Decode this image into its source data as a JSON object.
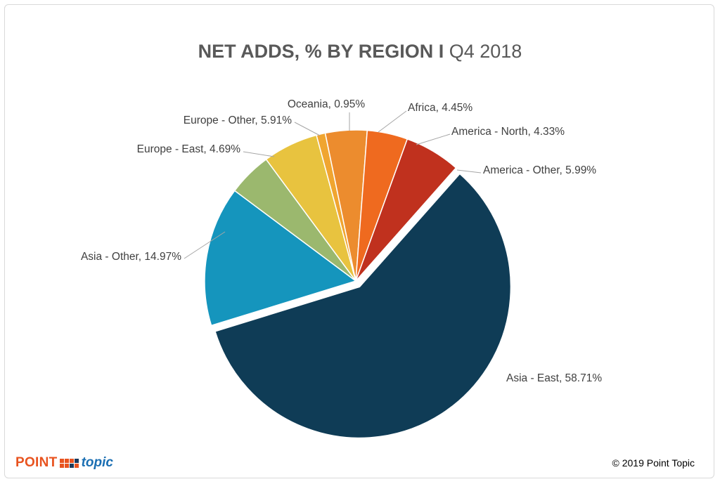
{
  "chart_data": {
    "type": "pie",
    "title_bold": "NET ADDS, % BY REGION",
    "title_sep": " I ",
    "title_light": "Q4 2018",
    "slices": [
      {
        "label": "Asia - East, 58.71%",
        "name": "Asia - East",
        "value": 58.71,
        "color": "#0f3c56",
        "exploded": true
      },
      {
        "label": "Asia - Other, 14.97%",
        "name": "Asia - Other",
        "value": 14.97,
        "color": "#1595bd",
        "exploded": false
      },
      {
        "label": "Europe - East, 4.69%",
        "name": "Europe - East",
        "value": 4.69,
        "color": "#9bb86e",
        "exploded": false
      },
      {
        "label": "Europe - Other, 5.91%",
        "name": "Europe - Other",
        "value": 5.91,
        "color": "#e8c33f",
        "exploded": false
      },
      {
        "label": "Oceania, 0.95%",
        "name": "Oceania",
        "value": 0.95,
        "color": "#f0a530",
        "exploded": false
      },
      {
        "label": "Africa, 4.45%",
        "name": "Africa",
        "value": 4.45,
        "color": "#ec8c2e",
        "exploded": false
      },
      {
        "label": "America - North, 4.33%",
        "name": "America - North",
        "value": 4.33,
        "color": "#ef6a1f",
        "exploded": false
      },
      {
        "label": "America - Other, 5.99%",
        "name": "America - Other",
        "value": 5.99,
        "color": "#c0311e",
        "exploded": false
      }
    ]
  },
  "footer": {
    "copyright": "© 2019 Point Topic",
    "logo_point": "POINT",
    "logo_topic": "topic"
  }
}
